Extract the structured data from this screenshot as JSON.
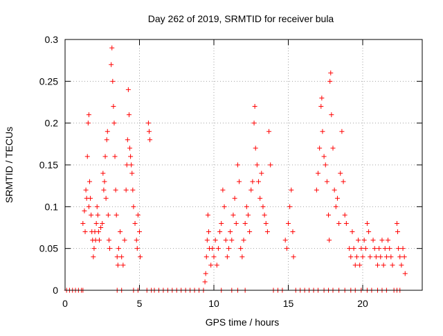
{
  "chart_data": {
    "type": "scatter",
    "title": "Day 262 of 2019, SRMTID for receiver bula",
    "xlabel": "GPS time / hours",
    "ylabel": "SRMTID / TECUs",
    "xlim": [
      0,
      24
    ],
    "ylim": [
      0,
      0.3
    ],
    "x_ticks": [
      0,
      5,
      10,
      15,
      20
    ],
    "x_tick_labels": [
      "0",
      "5",
      "10",
      "15",
      "20"
    ],
    "y_ticks": [
      0,
      0.05,
      0.1,
      0.15,
      0.2,
      0.25,
      0.3
    ],
    "y_tick_labels": [
      "0",
      "0.05",
      "0.1",
      "0.15",
      "0.2",
      "0.25",
      "0.3"
    ],
    "grid": true,
    "marker": "+",
    "color": "#ff0000",
    "series": [
      {
        "name": "SRMTID",
        "points": [
          [
            0.1,
            0
          ],
          [
            0.3,
            0
          ],
          [
            0.5,
            0
          ],
          [
            0.7,
            0
          ],
          [
            0.9,
            0
          ],
          [
            1.1,
            0
          ],
          [
            1.2,
            0
          ],
          [
            1.2,
            0.08
          ],
          [
            1.3,
            0.095
          ],
          [
            1.35,
            0.07
          ],
          [
            1.4,
            0.12
          ],
          [
            1.45,
            0.11
          ],
          [
            1.5,
            0.16
          ],
          [
            1.55,
            0.2
          ],
          [
            1.6,
            0.21
          ],
          [
            1.6,
            0.1
          ],
          [
            1.65,
            0.13
          ],
          [
            1.7,
            0.11
          ],
          [
            1.75,
            0.09
          ],
          [
            1.8,
            0.07
          ],
          [
            1.85,
            0.06
          ],
          [
            1.9,
            0.04
          ],
          [
            1.95,
            0.05
          ],
          [
            2.0,
            0.07
          ],
          [
            2.05,
            0.06
          ],
          [
            2.1,
            0.08
          ],
          [
            2.15,
            0.1
          ],
          [
            2.2,
            0.09
          ],
          [
            2.25,
            0.07
          ],
          [
            2.3,
            0.06
          ],
          [
            2.4,
            0.075
          ],
          [
            2.5,
            0.08
          ],
          [
            2.55,
            0.14
          ],
          [
            2.6,
            0.12
          ],
          [
            2.65,
            0.13
          ],
          [
            2.7,
            0.16
          ],
          [
            2.75,
            0.11
          ],
          [
            2.8,
            0.18
          ],
          [
            2.85,
            0.19
          ],
          [
            2.9,
            0.09
          ],
          [
            2.95,
            0.06
          ],
          [
            3.0,
            0.05
          ],
          [
            3.1,
            0.27
          ],
          [
            3.15,
            0.29
          ],
          [
            3.2,
            0.25
          ],
          [
            3.25,
            0.22
          ],
          [
            3.3,
            0.2
          ],
          [
            3.35,
            0.16
          ],
          [
            3.4,
            0.12
          ],
          [
            3.45,
            0.09
          ],
          [
            3.5,
            0.04
          ],
          [
            3.55,
            0.03
          ],
          [
            3.6,
            0.05
          ],
          [
            3.7,
            0.07
          ],
          [
            3.8,
            0.04
          ],
          [
            3.9,
            0.03
          ],
          [
            4.0,
            0.06
          ],
          [
            4.1,
            0.12
          ],
          [
            4.15,
            0.15
          ],
          [
            4.2,
            0.18
          ],
          [
            4.25,
            0.24
          ],
          [
            4.3,
            0.21
          ],
          [
            4.35,
            0.17
          ],
          [
            4.4,
            0.16
          ],
          [
            4.45,
            0.15
          ],
          [
            4.5,
            0.14
          ],
          [
            4.55,
            0.12
          ],
          [
            4.6,
            0.1
          ],
          [
            4.7,
            0.08
          ],
          [
            4.8,
            0.06
          ],
          [
            4.85,
            0.05
          ],
          [
            4.9,
            0.09
          ],
          [
            5.0,
            0.07
          ],
          [
            5.05,
            0.04
          ],
          [
            5.6,
            0.2
          ],
          [
            5.65,
            0.19
          ],
          [
            5.7,
            0.18
          ],
          [
            3.5,
            0
          ],
          [
            3.8,
            0
          ],
          [
            4.6,
            0
          ],
          [
            4.9,
            0
          ],
          [
            5.5,
            0
          ],
          [
            5.8,
            0
          ],
          [
            6.0,
            0
          ],
          [
            6.3,
            0
          ],
          [
            6.6,
            0
          ],
          [
            6.9,
            0
          ],
          [
            7.2,
            0
          ],
          [
            7.5,
            0
          ],
          [
            7.8,
            0
          ],
          [
            8.1,
            0
          ],
          [
            8.4,
            0
          ],
          [
            8.7,
            0
          ],
          [
            9.0,
            0
          ],
          [
            9.3,
            0
          ],
          [
            9.4,
            0.01
          ],
          [
            9.45,
            0.02
          ],
          [
            9.5,
            0.04
          ],
          [
            9.55,
            0.06
          ],
          [
            9.6,
            0.09
          ],
          [
            9.65,
            0.07
          ],
          [
            9.7,
            0.05
          ],
          [
            9.8,
            0.03
          ],
          [
            9.9,
            0.05
          ],
          [
            10.0,
            0.04
          ],
          [
            10.1,
            0.06
          ],
          [
            10.2,
            0.03
          ],
          [
            10.3,
            0.05
          ],
          [
            10.4,
            0.07
          ],
          [
            10.5,
            0.08
          ],
          [
            10.6,
            0.12
          ],
          [
            10.7,
            0.1
          ],
          [
            10.8,
            0.06
          ],
          [
            10.9,
            0.04
          ],
          [
            11.0,
            0.05
          ],
          [
            11.1,
            0.07
          ],
          [
            11.2,
            0.06
          ],
          [
            11.3,
            0.09
          ],
          [
            11.4,
            0.11
          ],
          [
            11.5,
            0.08
          ],
          [
            11.6,
            0.15
          ],
          [
            11.7,
            0.13
          ],
          [
            11.8,
            0.05
          ],
          [
            11.9,
            0.04
          ],
          [
            12.0,
            0.06
          ],
          [
            12.1,
            0.08
          ],
          [
            12.2,
            0.1
          ],
          [
            12.3,
            0.09
          ],
          [
            12.4,
            0.07
          ],
          [
            12.5,
            0.12
          ],
          [
            12.6,
            0.13
          ],
          [
            12.7,
            0.2
          ],
          [
            12.75,
            0.22
          ],
          [
            12.8,
            0.17
          ],
          [
            12.9,
            0.15
          ],
          [
            13.0,
            0.13
          ],
          [
            13.1,
            0.11
          ],
          [
            13.2,
            0.14
          ],
          [
            13.3,
            0.1
          ],
          [
            13.4,
            0.09
          ],
          [
            13.5,
            0.08
          ],
          [
            13.6,
            0.07
          ],
          [
            13.7,
            0.19
          ],
          [
            13.8,
            0.15
          ],
          [
            10.5,
            0
          ],
          [
            11.2,
            0
          ],
          [
            11.6,
            0
          ],
          [
            12.1,
            0
          ],
          [
            14.0,
            0
          ],
          [
            14.3,
            0
          ],
          [
            14.6,
            0
          ],
          [
            14.8,
            0.06
          ],
          [
            14.9,
            0.05
          ],
          [
            15.0,
            0.08
          ],
          [
            15.1,
            0.1
          ],
          [
            15.2,
            0.12
          ],
          [
            15.3,
            0.07
          ],
          [
            15.35,
            0.04
          ],
          [
            15.5,
            0
          ],
          [
            15.8,
            0
          ],
          [
            16.1,
            0
          ],
          [
            16.4,
            0
          ],
          [
            16.7,
            0
          ],
          [
            17.0,
            0
          ],
          [
            17.4,
            0
          ],
          [
            17.7,
            0
          ],
          [
            18.0,
            0
          ],
          [
            18.4,
            0
          ],
          [
            16.9,
            0.12
          ],
          [
            17.0,
            0.14
          ],
          [
            17.1,
            0.17
          ],
          [
            17.2,
            0.22
          ],
          [
            17.25,
            0.23
          ],
          [
            17.3,
            0.19
          ],
          [
            17.4,
            0.16
          ],
          [
            17.5,
            0.15
          ],
          [
            17.6,
            0.13
          ],
          [
            17.7,
            0.09
          ],
          [
            17.75,
            0.06
          ],
          [
            17.8,
            0.25
          ],
          [
            17.85,
            0.26
          ],
          [
            17.9,
            0.21
          ],
          [
            18.0,
            0.17
          ],
          [
            18.1,
            0.12
          ],
          [
            18.2,
            0.1
          ],
          [
            18.3,
            0.11
          ],
          [
            18.4,
            0.08
          ],
          [
            18.5,
            0.14
          ],
          [
            18.6,
            0.19
          ],
          [
            18.7,
            0.13
          ],
          [
            18.8,
            0.09
          ],
          [
            18.9,
            0.08
          ],
          [
            19.1,
            0.05
          ],
          [
            19.2,
            0.04
          ],
          [
            19.3,
            0.07
          ],
          [
            19.4,
            0.05
          ],
          [
            19.5,
            0.03
          ],
          [
            19.6,
            0.04
          ],
          [
            19.7,
            0.06
          ],
          [
            19.8,
            0.03
          ],
          [
            19.9,
            0.05
          ],
          [
            20.0,
            0.04
          ],
          [
            20.1,
            0.06
          ],
          [
            20.2,
            0.05
          ],
          [
            20.3,
            0.08
          ],
          [
            20.4,
            0.07
          ],
          [
            20.5,
            0.04
          ],
          [
            20.7,
            0.06
          ],
          [
            20.8,
            0.05
          ],
          [
            20.9,
            0.04
          ],
          [
            21.0,
            0.03
          ],
          [
            21.1,
            0.05
          ],
          [
            21.2,
            0.04
          ],
          [
            21.3,
            0.06
          ],
          [
            21.4,
            0.03
          ],
          [
            21.5,
            0.05
          ],
          [
            21.6,
            0.04
          ],
          [
            21.7,
            0.06
          ],
          [
            21.8,
            0.05
          ],
          [
            21.9,
            0.04
          ],
          [
            22.0,
            0.03
          ],
          [
            22.3,
            0.08
          ],
          [
            22.35,
            0.07
          ],
          [
            22.4,
            0.05
          ],
          [
            22.5,
            0.04
          ],
          [
            22.6,
            0.03
          ],
          [
            22.7,
            0.05
          ],
          [
            22.8,
            0.04
          ],
          [
            22.85,
            0.02
          ],
          [
            18.8,
            0
          ],
          [
            19.2,
            0
          ],
          [
            19.5,
            0
          ],
          [
            19.9,
            0
          ],
          [
            20.3,
            0
          ],
          [
            20.6,
            0
          ],
          [
            21.0,
            0
          ],
          [
            21.3,
            0
          ],
          [
            21.6,
            0
          ],
          [
            22.1,
            0
          ],
          [
            22.3,
            0
          ],
          [
            22.5,
            0
          ]
        ]
      }
    ]
  }
}
